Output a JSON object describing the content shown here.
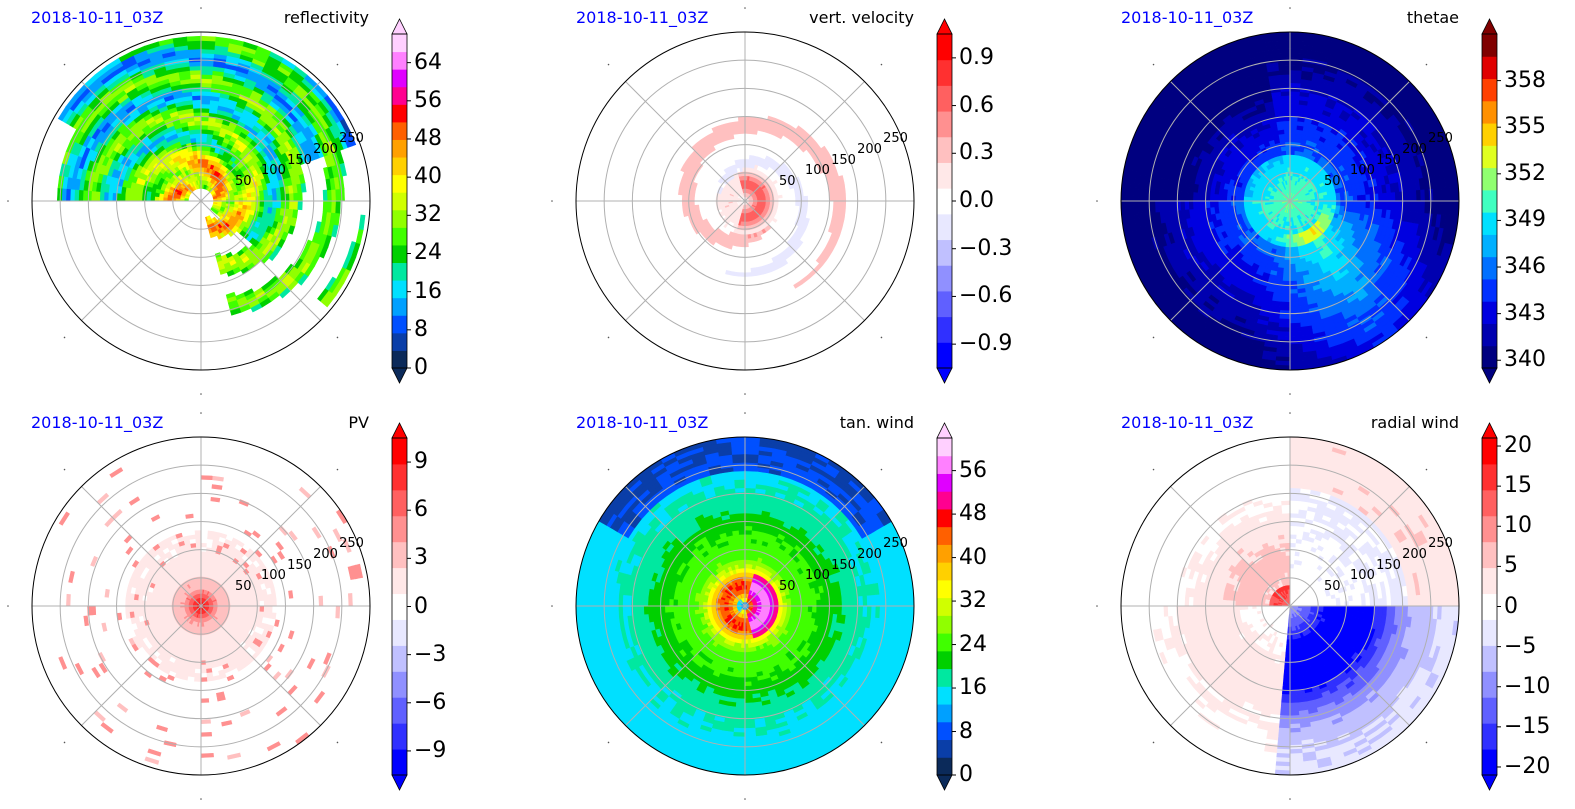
{
  "chart_data": [
    {
      "type": "heatmap",
      "projection": "polar",
      "date_label": "2018-10-11_03Z",
      "title": "reflectivity",
      "radial_ticks": [
        "50",
        "100",
        "150",
        "200",
        "250"
      ],
      "colorbar": {
        "ticks": [
          "0",
          "8",
          "16",
          "24",
          "32",
          "40",
          "48",
          "56",
          "64"
        ],
        "range": [
          0,
          70
        ],
        "extend": "both"
      },
      "colormap": [
        "#0b2a5a",
        "#0a3ea8",
        "#0050ff",
        "#00a0ff",
        "#00e0ff",
        "#00e8a0",
        "#00d000",
        "#40ff00",
        "#90ff00",
        "#d0ff00",
        "#ffff00",
        "#ffd000",
        "#ffa000",
        "#ff6000",
        "#ff0000",
        "#ff0090",
        "#e000ff",
        "#ff80ff",
        "#ffd0ff"
      ],
      "field": "reflectivity",
      "shading": {
        "field": "reflectivity",
        "min": 0,
        "max": 70
      }
    },
    {
      "type": "heatmap",
      "projection": "polar",
      "date_label": "2018-10-11_03Z",
      "title": "vert. velocity",
      "radial_ticks": [
        "50",
        "100",
        "150",
        "200",
        "250"
      ],
      "colorbar": {
        "ticks": [
          "−0.9",
          "−0.6",
          "−0.3",
          "0.0",
          "0.3",
          "0.6",
          "0.9"
        ],
        "range": [
          -1.05,
          1.05
        ],
        "extend": "both"
      },
      "colormap": [
        "#0000ff",
        "#3030ff",
        "#6060ff",
        "#9090ff",
        "#c0c0ff",
        "#e8e8ff",
        "#ffffff",
        "#ffe8e8",
        "#ffc0c0",
        "#ff9090",
        "#ff6060",
        "#ff3030",
        "#ff0000"
      ],
      "field": "vert. velocity",
      "shading": {
        "field": "vert. velocity",
        "min": -1.05,
        "max": 1.05
      }
    },
    {
      "type": "heatmap",
      "projection": "polar",
      "date_label": "2018-10-11_03Z",
      "title": "thetae",
      "radial_ticks": [
        "50",
        "100",
        "150",
        "200",
        "250"
      ],
      "colorbar": {
        "ticks": [
          "340",
          "343",
          "346",
          "349",
          "352",
          "355",
          "358"
        ],
        "range": [
          339.5,
          361
        ],
        "extend": "both"
      },
      "colormap": [
        "#000080",
        "#0000b0",
        "#0000e0",
        "#0030ff",
        "#0070ff",
        "#00b0ff",
        "#00e0ff",
        "#40ffc0",
        "#90ff70",
        "#e0ff20",
        "#ffd000",
        "#ff9000",
        "#ff4000",
        "#e00000",
        "#800000"
      ],
      "field": "thetae",
      "shading": {
        "field": "thetae",
        "min": 339.5,
        "max": 361
      }
    },
    {
      "type": "heatmap",
      "projection": "polar",
      "date_label": "2018-10-11_03Z",
      "title": "PV",
      "radial_ticks": [
        "50",
        "100",
        "150",
        "200",
        "250"
      ],
      "colorbar": {
        "ticks": [
          "−9",
          "−6",
          "−3",
          "0",
          "3",
          "6",
          "9"
        ],
        "range": [
          -10.5,
          10.5
        ],
        "extend": "both"
      },
      "colormap": [
        "#0000ff",
        "#3030ff",
        "#6060ff",
        "#9090ff",
        "#c0c0ff",
        "#e8e8ff",
        "#ffffff",
        "#ffe8e8",
        "#ffc0c0",
        "#ff9090",
        "#ff6060",
        "#ff3030",
        "#ff0000"
      ],
      "field": "PV",
      "shading": {
        "field": "PV",
        "min": -10.5,
        "max": 10.5
      }
    },
    {
      "type": "heatmap",
      "projection": "polar",
      "date_label": "2018-10-11_03Z",
      "title": "tan. wind",
      "radial_ticks": [
        "50",
        "100",
        "150",
        "200",
        "250"
      ],
      "colorbar": {
        "ticks": [
          "0",
          "8",
          "16",
          "24",
          "32",
          "40",
          "48",
          "56"
        ],
        "range": [
          0,
          62
        ],
        "extend": "both"
      },
      "colormap": [
        "#0b2a5a",
        "#0a3ea8",
        "#0050ff",
        "#00a0ff",
        "#00e0ff",
        "#00e8a0",
        "#00d000",
        "#40ff00",
        "#90ff00",
        "#d0ff00",
        "#ffff00",
        "#ffd000",
        "#ffa000",
        "#ff6000",
        "#ff0000",
        "#ff0090",
        "#e000ff",
        "#ff80ff",
        "#ffd0ff"
      ],
      "field": "tan. wind",
      "shading": {
        "field": "tan. wind",
        "min": 0,
        "max": 62
      }
    },
    {
      "type": "heatmap",
      "projection": "polar",
      "date_label": "2018-10-11_03Z",
      "title": "radial wind",
      "radial_ticks": [
        "50",
        "100",
        "150",
        "200",
        "250"
      ],
      "colorbar": {
        "ticks": [
          "−20",
          "−15",
          "−10",
          "−5",
          "0",
          "5",
          "10",
          "15",
          "20"
        ],
        "range": [
          -21,
          21
        ],
        "extend": "both"
      },
      "colormap": [
        "#0000ff",
        "#3030ff",
        "#6060ff",
        "#9090ff",
        "#c0c0ff",
        "#e8e8ff",
        "#ffffff",
        "#ffe8e8",
        "#ffc0c0",
        "#ff9090",
        "#ff6060",
        "#ff3030",
        "#ff0000"
      ],
      "field": "radial wind",
      "shading": {
        "field": "radial wind",
        "min": -21,
        "max": 21
      }
    }
  ]
}
